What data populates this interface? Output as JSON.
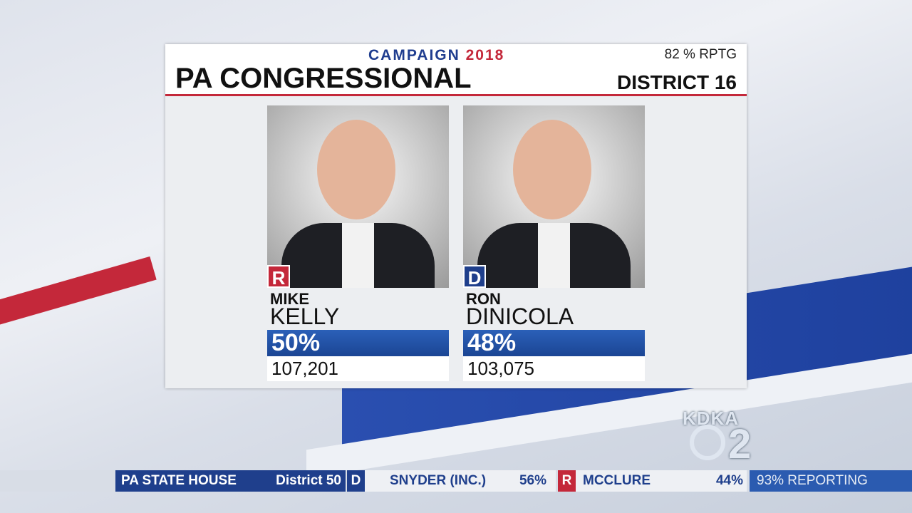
{
  "header": {
    "campaign": "CAMPAIGN",
    "year": "2018",
    "reporting": "82 % RPTG",
    "title": "PA CONGRESSIONAL",
    "district": "DISTRICT 16"
  },
  "candidates": [
    {
      "party": "R",
      "first_name": "MIKE",
      "last_name": "KELLY",
      "percent": "50%",
      "votes": "107,201"
    },
    {
      "party": "D",
      "first_name": "RON",
      "last_name": "DINICOLA",
      "percent": "48%",
      "votes": "103,075"
    }
  ],
  "logo": {
    "station": "KDKA",
    "channel": "2"
  },
  "ticker": {
    "race": "PA STATE HOUSE",
    "district": "District 50",
    "candidates": [
      {
        "party": "D",
        "name": "SNYDER (INC.)",
        "percent": "56%"
      },
      {
        "party": "R",
        "name": "MCCLURE",
        "percent": "44%"
      }
    ],
    "reporting": "93% REPORTING"
  }
}
